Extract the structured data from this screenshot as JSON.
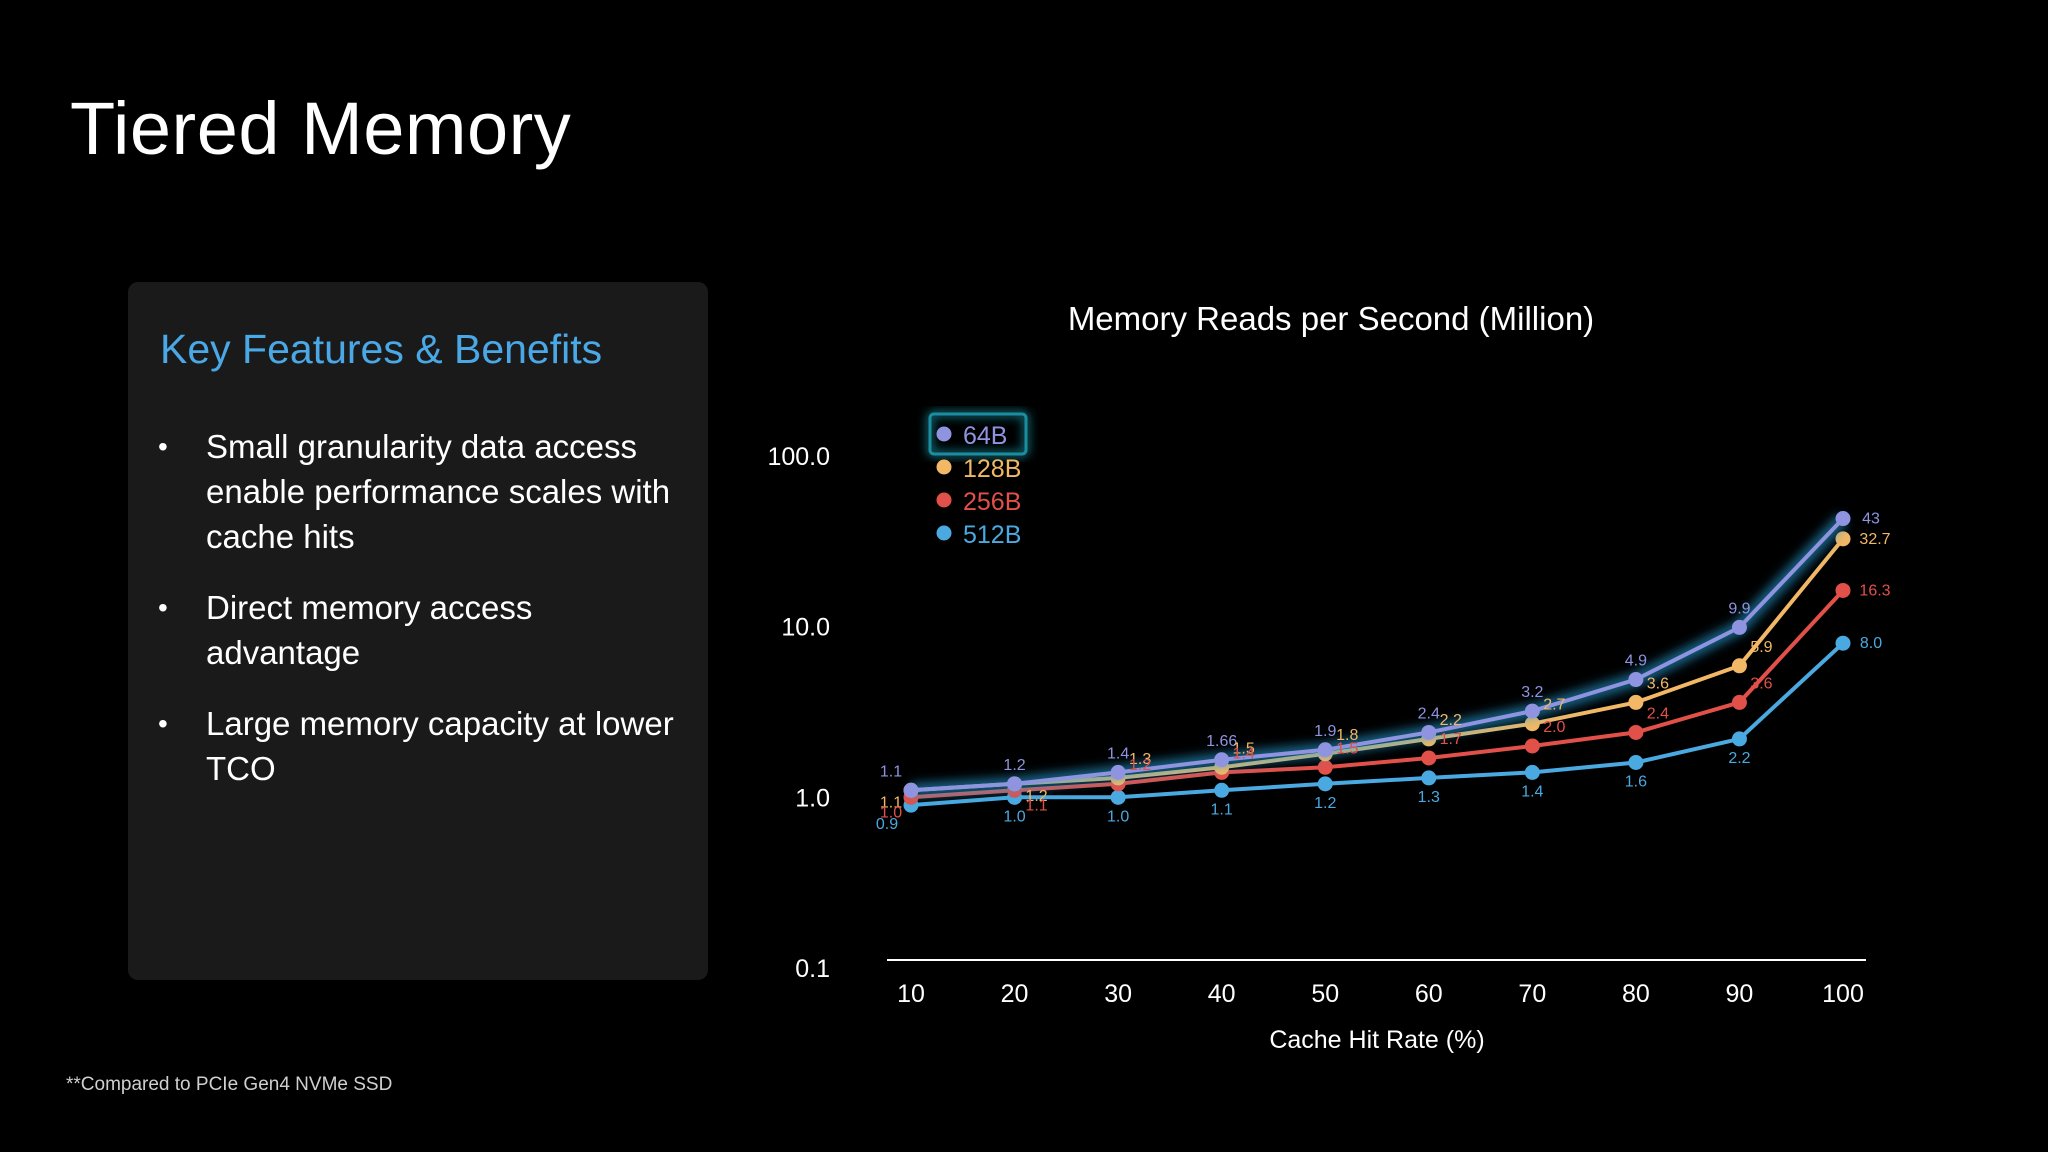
{
  "slide": {
    "title": "Tiered Memory",
    "footnote": "**Compared to PCIe Gen4 NVMe SSD"
  },
  "panel": {
    "title": "Key Features & Benefits",
    "bullet_symbol": "•",
    "bullets": [
      "Small granularity data access enable  performance scales with cache hits",
      "Direct memory access advantage",
      "Large memory capacity at lower TCO"
    ]
  },
  "chart_data": {
    "type": "line",
    "title": "Memory Reads per Second (Million)",
    "xlabel": "Cache Hit Rate (%)",
    "ylabel": "",
    "y_scale": "log",
    "ylim": [
      0.1,
      100
    ],
    "x": [
      10,
      20,
      30,
      40,
      50,
      60,
      70,
      80,
      90,
      100
    ],
    "y_ticks": [
      "0.1",
      "1.0",
      "10.0",
      "100.0"
    ],
    "legend_position": "top-left",
    "grid": false,
    "series": [
      {
        "name": "64B",
        "color": "#8f94e0",
        "glow": true,
        "values": [
          1.1,
          1.2,
          1.4,
          1.66,
          1.9,
          2.4,
          3.2,
          4.9,
          9.9,
          43
        ],
        "labels": [
          "1.1",
          "1.2",
          "1.4",
          "1.66",
          "1.9",
          "2.4",
          "3.2",
          "4.9",
          "9.9",
          "43"
        ]
      },
      {
        "name": "128B",
        "color": "#f2b865",
        "values": [
          1.1,
          1.2,
          1.3,
          1.5,
          1.8,
          2.2,
          2.7,
          3.6,
          5.9,
          32.7
        ],
        "labels": [
          "1.1",
          "1.2",
          "1.3",
          "1.5",
          "1.8",
          "2.2",
          "2.7",
          "3.6",
          "5.9",
          "32.7"
        ]
      },
      {
        "name": "256B",
        "color": "#e2504a",
        "values": [
          1.0,
          1.1,
          1.2,
          1.4,
          1.5,
          1.7,
          2.0,
          2.4,
          3.6,
          16.3
        ],
        "labels": [
          "1.0",
          "1.1",
          "1.2",
          "1.4",
          "1.5",
          "1.7",
          "2.0",
          "2.4",
          "3.6",
          "16.3"
        ]
      },
      {
        "name": "512B",
        "color": "#4aa9e0",
        "values": [
          0.9,
          1.0,
          1.0,
          1.1,
          1.2,
          1.3,
          1.4,
          1.6,
          2.2,
          8.0
        ],
        "labels": [
          "0.9",
          "1.0",
          "1.0",
          "1.1",
          "1.2",
          "1.3",
          "1.4",
          "1.6",
          "2.2",
          "8.0"
        ]
      }
    ]
  }
}
